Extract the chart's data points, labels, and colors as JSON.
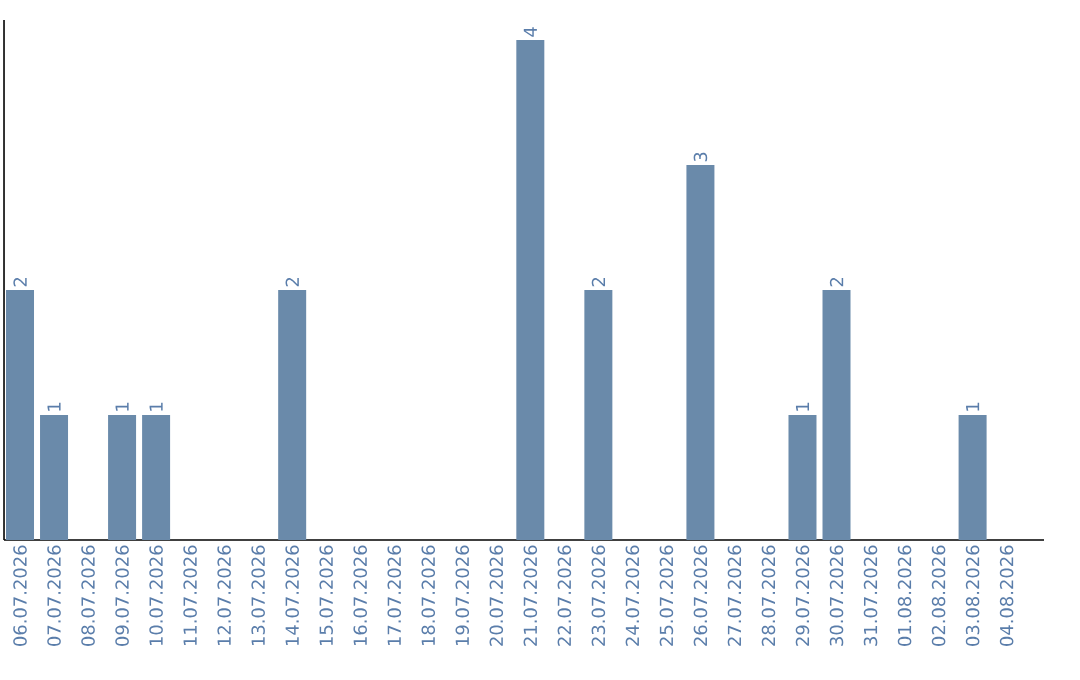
{
  "chart_data": {
    "type": "bar",
    "categories": [
      "06.07.2026",
      "07.07.2026",
      "08.07.2026",
      "09.07.2026",
      "10.07.2026",
      "11.07.2026",
      "12.07.2026",
      "13.07.2026",
      "14.07.2026",
      "15.07.2026",
      "16.07.2026",
      "17.07.2026",
      "18.07.2026",
      "19.07.2026",
      "20.07.2026",
      "21.07.2026",
      "22.07.2026",
      "23.07.2026",
      "24.07.2026",
      "25.07.2026",
      "26.07.2026",
      "27.07.2026",
      "28.07.2026",
      "29.07.2026",
      "30.07.2026",
      "31.07.2026",
      "01.08.2026",
      "02.08.2026",
      "03.08.2026",
      "04.08.2026"
    ],
    "values": [
      2,
      1,
      0,
      1,
      1,
      0,
      0,
      0,
      2,
      0,
      0,
      0,
      0,
      0,
      0,
      4,
      0,
      2,
      0,
      0,
      3,
      0,
      0,
      1,
      2,
      0,
      0,
      0,
      1,
      0
    ],
    "value_labels": [
      "2",
      "1",
      null,
      "1",
      "1",
      null,
      null,
      null,
      "2",
      null,
      null,
      null,
      null,
      null,
      null,
      "4",
      null,
      "2",
      null,
      null,
      "3",
      null,
      null,
      "1",
      "2",
      null,
      null,
      null,
      "1",
      null
    ],
    "color": "#6a8aaa"
  }
}
